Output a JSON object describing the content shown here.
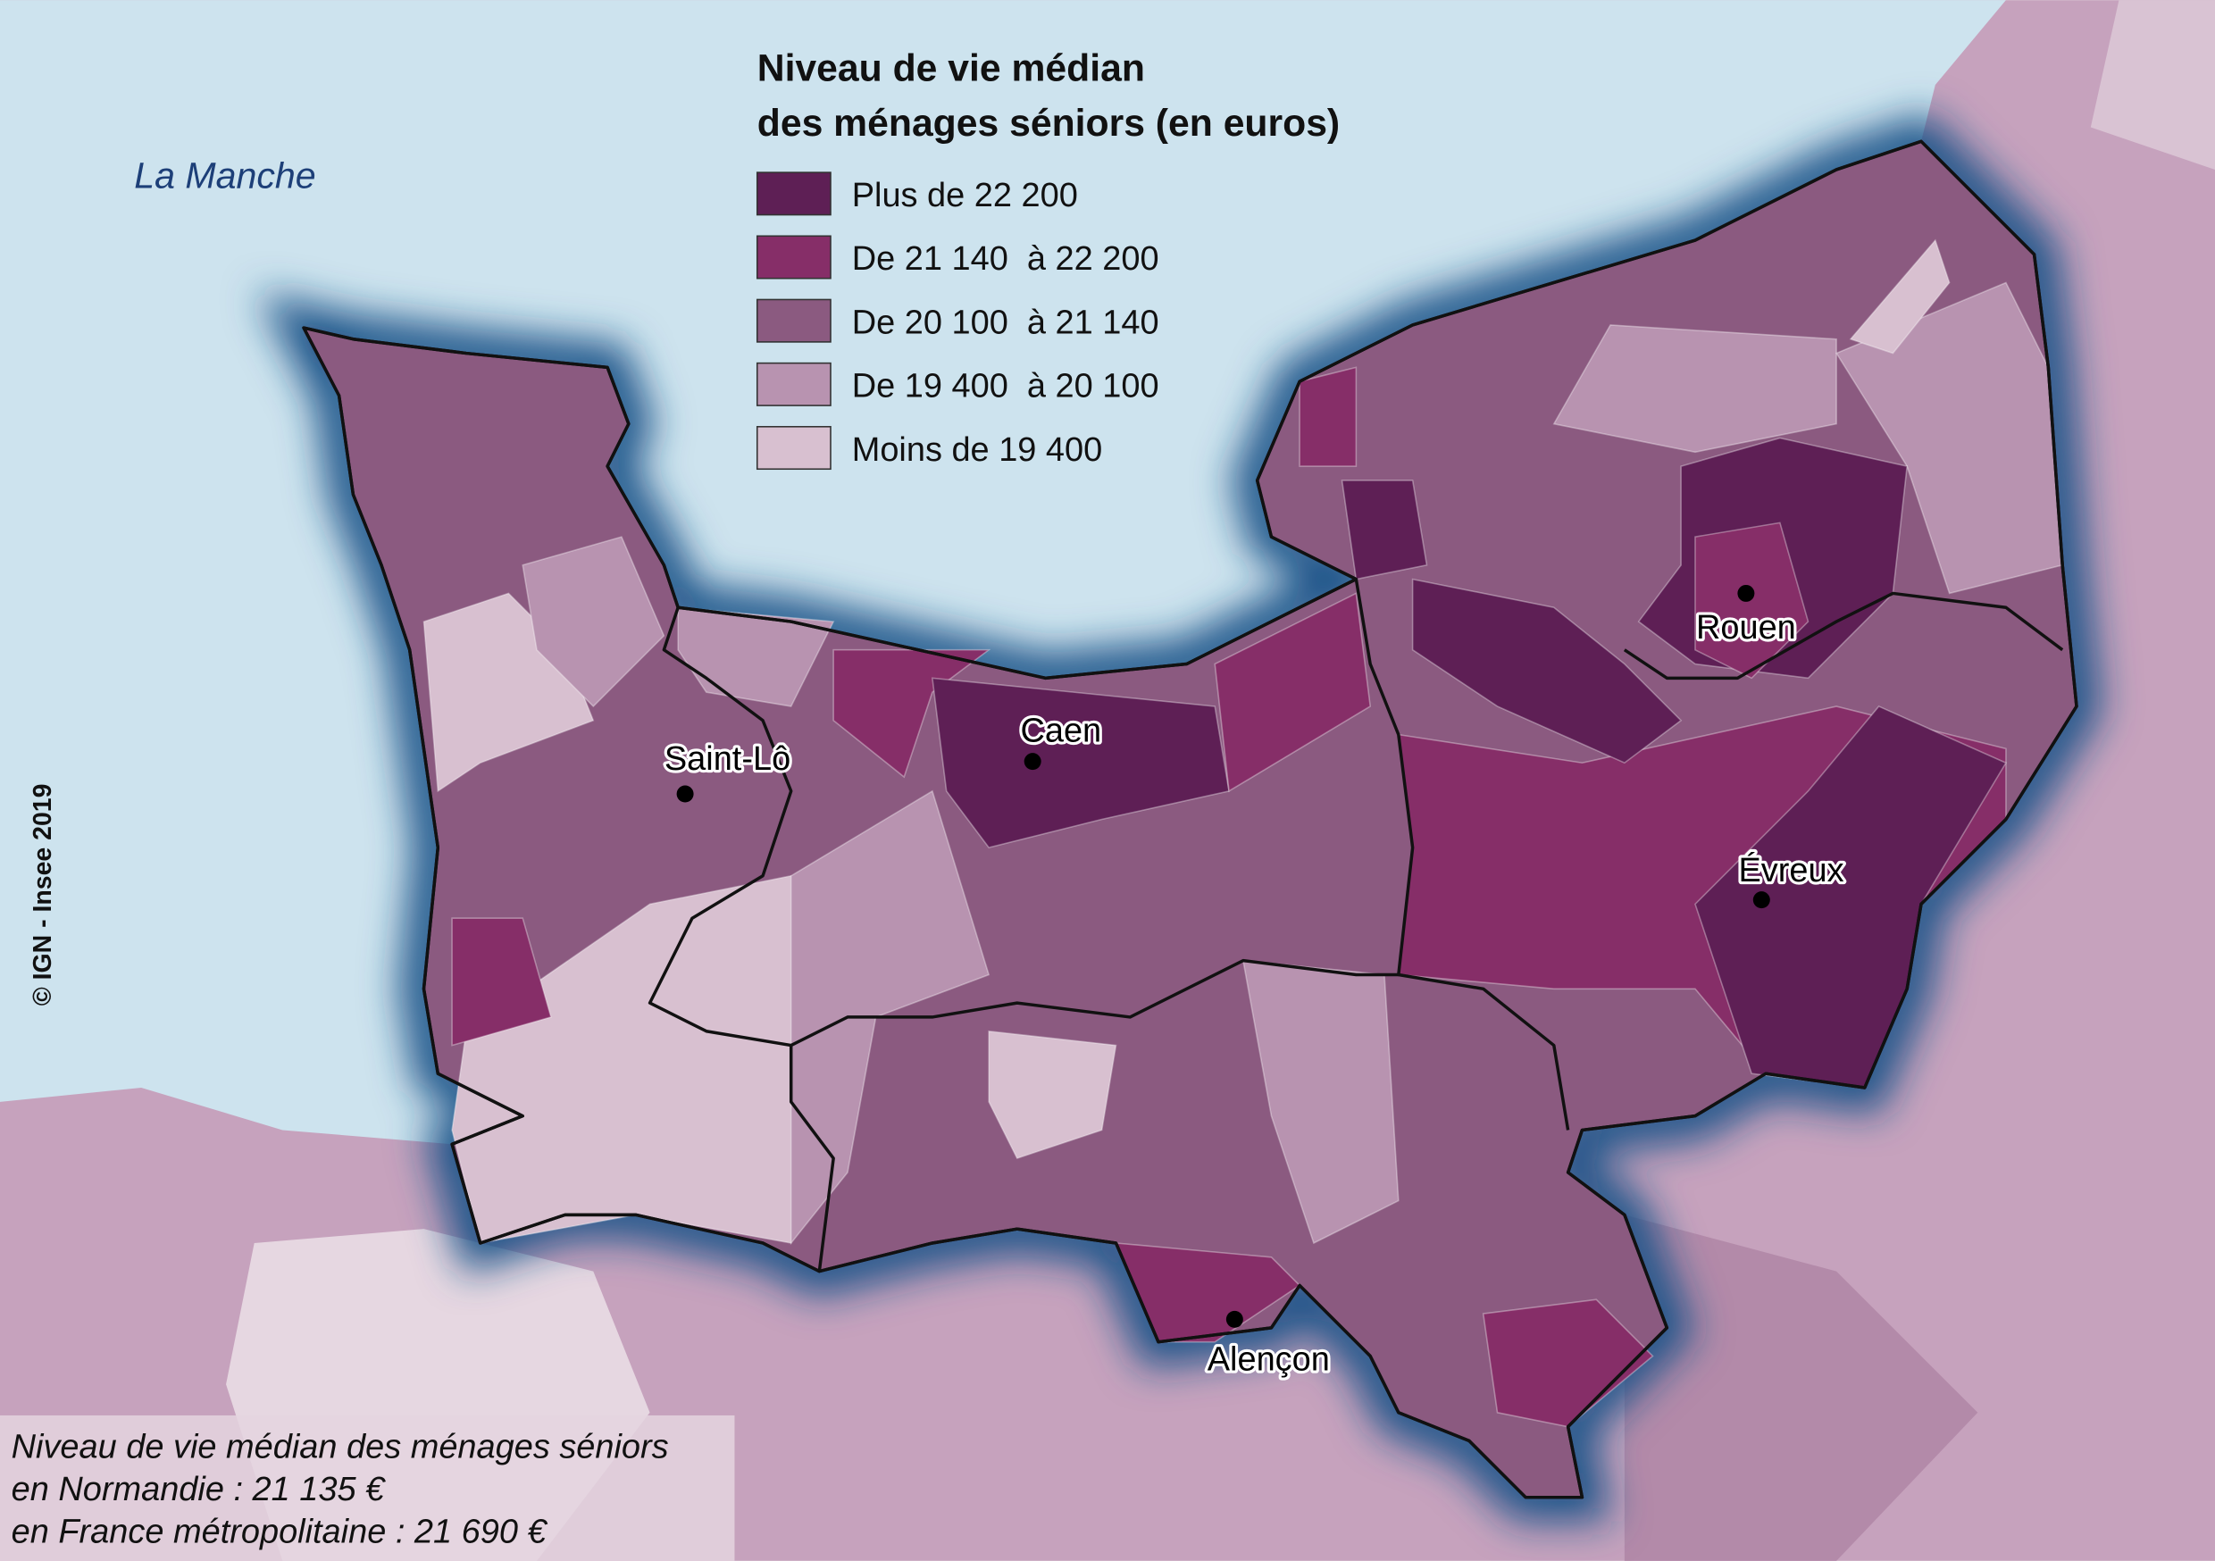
{
  "sea_label": "La Manche",
  "legend": {
    "title": [
      "Niveau de vie médian",
      "des ménages séniors (en euros)"
    ],
    "items": [
      {
        "label": "Plus de 22 200",
        "color": "#5e1f55"
      },
      {
        "label": "De 21 140  à 22 200",
        "color": "#862e68"
      },
      {
        "label": "De 20 100  à 21 140",
        "color": "#8b5a80"
      },
      {
        "label": "De 19 400  à 20 100",
        "color": "#b893b0"
      },
      {
        "label": "Moins de 19 400",
        "color": "#d8c0d0"
      }
    ]
  },
  "cities": [
    "Rouen",
    "Caen",
    "Saint-Lô",
    "Évreux",
    "Alençon"
  ],
  "credit": "© IGN - Insee 2019",
  "note": [
    "Niveau de vie médian des ménages séniors",
    "en Normandie : 21 135 €",
    "en France métropolitaine : 21 690 €"
  ]
}
